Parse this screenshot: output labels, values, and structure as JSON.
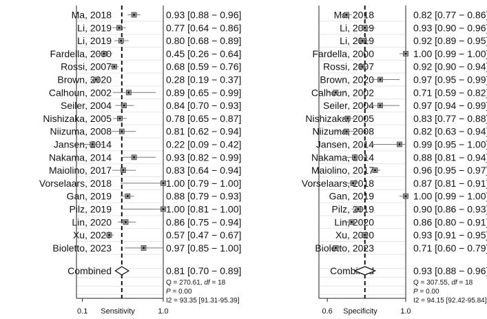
{
  "chart_data": [
    {
      "type": "forest",
      "panel": "sensitivity",
      "xlabel": "Sensitivity",
      "scale": "logit",
      "xticks": [
        "0.1",
        "1.0"
      ],
      "xlim": [
        0.06,
        0.995
      ],
      "reference_line": 0.81,
      "studies": [
        {
          "label": "Ma, 2018",
          "est": 0.93,
          "lo": 0.88,
          "hi": 0.96,
          "text": "0.93 [0.88 − 0.96]"
        },
        {
          "label": "Li, 2019",
          "est": 0.77,
          "lo": 0.64,
          "hi": 0.86,
          "text": "0.77 [0.64 − 0.86]"
        },
        {
          "label": "Li, 2019",
          "est": 0.8,
          "lo": 0.68,
          "hi": 0.89,
          "text": "0.80 [0.68 − 0.89]"
        },
        {
          "label": "Fardella, 2000",
          "est": 0.45,
          "lo": 0.26,
          "hi": 0.64,
          "text": "0.45 [0.26 − 0.64]"
        },
        {
          "label": "Rossi, 2007",
          "est": 0.68,
          "lo": 0.59,
          "hi": 0.76,
          "text": "0.68 [0.59 − 0.76]"
        },
        {
          "label": "Brown, 2020",
          "est": 0.28,
          "lo": 0.19,
          "hi": 0.37,
          "text": "0.28 [0.19 − 0.37]"
        },
        {
          "label": "Calhoun, 2002",
          "est": 0.89,
          "lo": 0.65,
          "hi": 0.99,
          "text": "0.89 [0.65 − 0.99]"
        },
        {
          "label": "Seiler, 2004",
          "est": 0.84,
          "lo": 0.7,
          "hi": 0.93,
          "text": "0.84 [0.70 − 0.93]"
        },
        {
          "label": "Nishizaka, 2005",
          "est": 0.78,
          "lo": 0.65,
          "hi": 0.87,
          "text": "0.78 [0.65 − 0.87]"
        },
        {
          "label": "Niizuma, 2008",
          "est": 0.81,
          "lo": 0.62,
          "hi": 0.94,
          "text": "0.81 [0.62 − 0.94]"
        },
        {
          "label": "Jansen, 2014",
          "est": 0.22,
          "lo": 0.09,
          "hi": 0.42,
          "text": "0.22 [0.09 − 0.42]"
        },
        {
          "label": "Nakama, 2014",
          "est": 0.93,
          "lo": 0.82,
          "hi": 0.99,
          "text": "0.93 [0.82 − 0.99]"
        },
        {
          "label": "Maiolino, 2017",
          "est": 0.83,
          "lo": 0.64,
          "hi": 0.94,
          "text": "0.83 [0.64 − 0.94]"
        },
        {
          "label": "Vorselaars, 2018",
          "est": 1.0,
          "lo": 0.79,
          "hi": 1.0,
          "text": "1.00 [0.79 − 1.00]"
        },
        {
          "label": "Gan, 2019",
          "est": 0.88,
          "lo": 0.79,
          "hi": 0.93,
          "text": "0.88 [0.79 − 0.93]"
        },
        {
          "label": "Pilz, 2019",
          "est": 1.0,
          "lo": 0.81,
          "hi": 1.0,
          "text": "1.00 [0.81 − 1.00]"
        },
        {
          "label": "Lin, 2020",
          "est": 0.86,
          "lo": 0.75,
          "hi": 0.94,
          "text": "0.86 [0.75 − 0.94]"
        },
        {
          "label": "Xu, 2020",
          "est": 0.57,
          "lo": 0.47,
          "hi": 0.67,
          "text": "0.57 [0.47 − 0.67]"
        },
        {
          "label": "Bioletto, 2023",
          "est": 0.97,
          "lo": 0.85,
          "hi": 1.0,
          "text": "0.97 [0.85 − 1.00]"
        }
      ],
      "combined": {
        "label": "Combined",
        "est": 0.81,
        "lo": 0.7,
        "hi": 0.89,
        "text": "0.81 [0.70 − 0.89]"
      },
      "stats": {
        "q_prefix": "Q = 270.61, ",
        "df_label": "df",
        "df_value": " = 18",
        "p_label": "P",
        "p_value": " = 0.00",
        "i2_text": "I2 = 93.35 [91.31-95.39]"
      }
    },
    {
      "type": "forest",
      "panel": "specificity",
      "xlabel": "Specificity",
      "scale": "logit",
      "xticks": [
        "0.6",
        "1.0"
      ],
      "xlim": [
        0.48,
        0.993
      ],
      "reference_line": 0.93,
      "studies": [
        {
          "label": "Ma, 2018",
          "est": 0.82,
          "lo": 0.77,
          "hi": 0.86,
          "text": "0.82 [0.77 − 0.86]"
        },
        {
          "label": "Li, 2019",
          "est": 0.93,
          "lo": 0.9,
          "hi": 0.96,
          "text": "0.93 [0.90 − 0.96]"
        },
        {
          "label": "Li, 2019",
          "est": 0.92,
          "lo": 0.89,
          "hi": 0.95,
          "text": "0.92 [0.89 − 0.95]"
        },
        {
          "label": "Fardella, 2000",
          "est": 1.0,
          "lo": 0.99,
          "hi": 1.0,
          "text": "1.00 [0.99 − 1.00]"
        },
        {
          "label": "Rossi, 2007",
          "est": 0.92,
          "lo": 0.9,
          "hi": 0.94,
          "text": "0.92 [0.90 − 0.94]"
        },
        {
          "label": "Brown, 2020",
          "est": 0.97,
          "lo": 0.95,
          "hi": 0.99,
          "text": "0.97 [0.95 − 0.99]"
        },
        {
          "label": "Calhoun, 2002",
          "est": 0.71,
          "lo": 0.59,
          "hi": 0.82,
          "text": "0.71 [0.59 − 0.82]"
        },
        {
          "label": "Seiler, 2004",
          "est": 0.97,
          "lo": 0.94,
          "hi": 0.99,
          "text": "0.97 [0.94 − 0.99]"
        },
        {
          "label": "Nishizaka, 2005",
          "est": 0.83,
          "lo": 0.77,
          "hi": 0.88,
          "text": "0.83 [0.77 − 0.88]"
        },
        {
          "label": "Niizuma, 2008",
          "est": 0.82,
          "lo": 0.63,
          "hi": 0.94,
          "text": "0.82 [0.63 − 0.94]"
        },
        {
          "label": "Jansen, 2014",
          "est": 0.99,
          "lo": 0.95,
          "hi": 1.0,
          "text": "0.99 [0.95 − 1.00]"
        },
        {
          "label": "Nakama, 2014",
          "est": 0.88,
          "lo": 0.81,
          "hi": 0.94,
          "text": "0.88 [0.81 − 0.94]"
        },
        {
          "label": "Maiolino, 2017",
          "est": 0.96,
          "lo": 0.95,
          "hi": 0.97,
          "text": "0.96 [0.95 − 0.97]"
        },
        {
          "label": "Vorselaars, 2018",
          "est": 0.87,
          "lo": 0.81,
          "hi": 0.91,
          "text": "0.87 [0.81 − 0.91]"
        },
        {
          "label": "Gan, 2019",
          "est": 1.0,
          "lo": 0.99,
          "hi": 1.0,
          "text": "1.00 [0.99 − 1.00]"
        },
        {
          "label": "Pilz, 2019",
          "est": 0.9,
          "lo": 0.86,
          "hi": 0.93,
          "text": "0.90 [0.86 − 0.93]"
        },
        {
          "label": "Lin, 2020",
          "est": 0.86,
          "lo": 0.8,
          "hi": 0.91,
          "text": "0.86 [0.80 − 0.91]"
        },
        {
          "label": "Xu, 2020",
          "est": 0.93,
          "lo": 0.91,
          "hi": 0.95,
          "text": "0.93 [0.91 − 0.95]"
        },
        {
          "label": "Bioletto, 2023",
          "est": 0.71,
          "lo": 0.6,
          "hi": 0.79,
          "text": "0.71 [0.60 − 0.79]"
        }
      ],
      "combined": {
        "label": "Combined",
        "est": 0.93,
        "lo": 0.88,
        "hi": 0.96,
        "text": "0.93 [0.88 − 0.96]"
      },
      "stats": {
        "q_prefix": "Q = 307.55, ",
        "df_label": "df",
        "df_value": " = 18",
        "p_label": "P",
        "p_value": " = 0.00",
        "i2_text": "I2 = 94.15 [92.42-95.84]"
      }
    }
  ]
}
